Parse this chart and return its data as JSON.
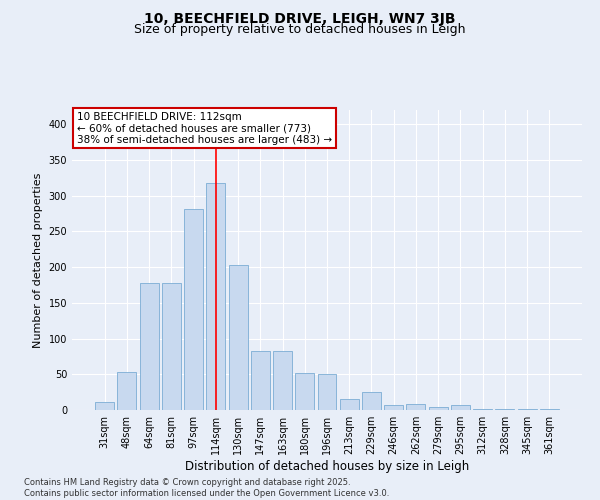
{
  "title1": "10, BEECHFIELD DRIVE, LEIGH, WN7 3JB",
  "title2": "Size of property relative to detached houses in Leigh",
  "xlabel": "Distribution of detached houses by size in Leigh",
  "ylabel": "Number of detached properties",
  "bar_labels": [
    "31sqm",
    "48sqm",
    "64sqm",
    "81sqm",
    "97sqm",
    "114sqm",
    "130sqm",
    "147sqm",
    "163sqm",
    "180sqm",
    "196sqm",
    "213sqm",
    "229sqm",
    "246sqm",
    "262sqm",
    "279sqm",
    "295sqm",
    "312sqm",
    "328sqm",
    "345sqm",
    "361sqm"
  ],
  "bar_values": [
    11,
    53,
    178,
    178,
    282,
    318,
    203,
    82,
    82,
    52,
    50,
    15,
    25,
    7,
    8,
    4,
    7,
    2,
    1,
    1,
    1
  ],
  "bar_color": "#c8d9ef",
  "bar_edgecolor": "#7badd4",
  "vline_color": "red",
  "vline_x_index": 5,
  "annotation_text": "10 BEECHFIELD DRIVE: 112sqm\n← 60% of detached houses are smaller (773)\n38% of semi-detached houses are larger (483) →",
  "annotation_box_facecolor": "#ffffff",
  "annotation_box_edgecolor": "#cc0000",
  "ylim": [
    0,
    420
  ],
  "yticks": [
    0,
    50,
    100,
    150,
    200,
    250,
    300,
    350,
    400
  ],
  "background_color": "#e8eef8",
  "grid_color": "#ffffff",
  "footer": "Contains HM Land Registry data © Crown copyright and database right 2025.\nContains public sector information licensed under the Open Government Licence v3.0.",
  "title1_fontsize": 10,
  "title2_fontsize": 9,
  "xlabel_fontsize": 8.5,
  "ylabel_fontsize": 8,
  "tick_fontsize": 7,
  "annotation_fontsize": 7.5,
  "footer_fontsize": 6
}
